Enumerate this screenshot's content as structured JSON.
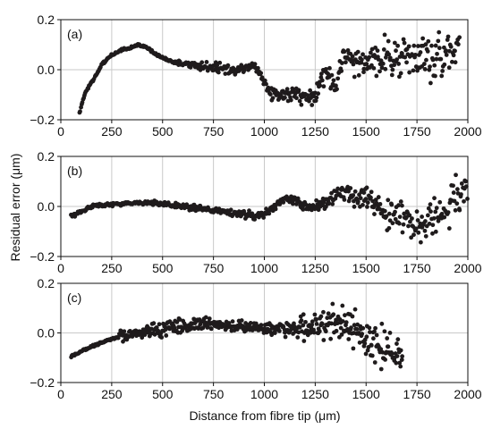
{
  "figure": {
    "ylabel": "Residual error (μm)",
    "xlabel": "Distance from fibre tip (μm)"
  },
  "colors": {
    "marker": "#1f1b1c",
    "grid": "#c9c9c9",
    "axis": "#111111"
  },
  "chart_data": [
    {
      "type": "scatter",
      "panel_label": "(a)",
      "xlim": [
        0,
        2000
      ],
      "ylim": [
        -0.2,
        0.2
      ],
      "x_ticks": [
        0,
        250,
        500,
        750,
        1000,
        1250,
        1500,
        1750,
        2000
      ],
      "x_tick_labels": [
        "0",
        "250",
        "500",
        "750",
        "1000",
        "1250",
        "1500",
        "1750",
        "2000"
      ],
      "y_ticks": [
        -0.2,
        0.0,
        0.2
      ],
      "y_tick_labels": [
        "−0.2",
        "0.0",
        "0.2"
      ],
      "grid": true,
      "trend": {
        "x": [
          90,
          120,
          160,
          200,
          250,
          300,
          350,
          380,
          420,
          470,
          550,
          650,
          750,
          850,
          950,
          1000,
          1050,
          1150,
          1250,
          1300,
          1350,
          1400,
          1450,
          1500,
          1600,
          1700,
          1800,
          1900,
          1960
        ],
        "y": [
          -0.18,
          -0.09,
          -0.04,
          0.02,
          0.06,
          0.08,
          0.09,
          0.1,
          0.09,
          0.06,
          0.03,
          0.02,
          0.01,
          0.0,
          0.02,
          -0.05,
          -0.1,
          -0.1,
          -0.11,
          0.0,
          -0.07,
          0.07,
          0.02,
          0.04,
          0.05,
          0.04,
          0.05,
          0.07,
          0.08
        ]
      },
      "scatter": [
        0,
        0,
        0,
        0,
        0.01,
        0.015,
        0.015,
        0.02,
        0.025,
        0.035,
        0.045,
        0.06,
        0.065,
        0.06
      ]
    },
    {
      "type": "scatter",
      "panel_label": "(b)",
      "xlim": [
        0,
        2000
      ],
      "ylim": [
        -0.2,
        0.2
      ],
      "x_ticks": [
        0,
        250,
        500,
        750,
        1000,
        1250,
        1500,
        1750,
        2000
      ],
      "x_tick_labels": [
        "0",
        "250",
        "500",
        "750",
        "1000",
        "1250",
        "1500",
        "1750",
        "2000"
      ],
      "y_ticks": [
        -0.2,
        0.0,
        0.2
      ],
      "y_tick_labels": [
        "−0.2",
        "0.0",
        "0.2"
      ],
      "grid": true,
      "trend": {
        "x": [
          50,
          100,
          150,
          200,
          300,
          400,
          500,
          600,
          700,
          800,
          900,
          950,
          1000,
          1100,
          1150,
          1200,
          1250,
          1300,
          1350,
          1400,
          1450,
          1500,
          1550,
          1600,
          1650,
          1700,
          1750,
          1800,
          1850,
          1900,
          1950,
          2000
        ],
        "y": [
          -0.04,
          -0.02,
          0.0,
          0.005,
          0.01,
          0.015,
          0.01,
          0.0,
          -0.01,
          -0.02,
          -0.03,
          -0.04,
          -0.03,
          0.03,
          0.02,
          0.0,
          0.0,
          0.02,
          0.04,
          0.05,
          0.04,
          0.04,
          0.0,
          -0.03,
          -0.03,
          -0.05,
          -0.08,
          -0.04,
          -0.04,
          -0.01,
          0.05,
          0.08
        ]
      },
      "scatter": [
        0.004,
        0.004,
        0.004,
        0.006,
        0.008,
        0.01,
        0.01,
        0.012,
        0.015,
        0.02,
        0.03,
        0.04,
        0.05,
        0.05
      ]
    },
    {
      "type": "scatter",
      "panel_label": "(c)",
      "xlim": [
        0,
        2000
      ],
      "ylim": [
        -0.2,
        0.2
      ],
      "x_ticks": [
        0,
        250,
        500,
        750,
        1000,
        1250,
        1500,
        1750,
        2000
      ],
      "x_tick_labels": [
        "0",
        "250",
        "500",
        "750",
        "1000",
        "1250",
        "1500",
        "1750",
        "2000"
      ],
      "y_ticks": [
        -0.2,
        0.0,
        0.2
      ],
      "y_tick_labels": [
        "−0.2",
        "0.0",
        "0.2"
      ],
      "grid": true,
      "trend": {
        "x": [
          50,
          150,
          250,
          350,
          450,
          550,
          650,
          750,
          850,
          950,
          1050,
          1150,
          1250,
          1350,
          1400,
          1450,
          1500,
          1550,
          1600,
          1650,
          1680
        ],
        "y": [
          -0.095,
          -0.055,
          -0.025,
          -0.005,
          0.01,
          0.025,
          0.035,
          0.035,
          0.03,
          0.025,
          0.02,
          0.02,
          0.025,
          0.035,
          0.03,
          0.005,
          -0.02,
          -0.04,
          -0.055,
          -0.08,
          -0.11
        ]
      },
      "scatter": [
        0,
        0,
        0.015,
        0.02,
        0.02,
        0.015,
        0.015,
        0.02,
        0.03,
        0.045,
        0.055,
        0.06,
        0.05,
        0.04
      ]
    }
  ]
}
